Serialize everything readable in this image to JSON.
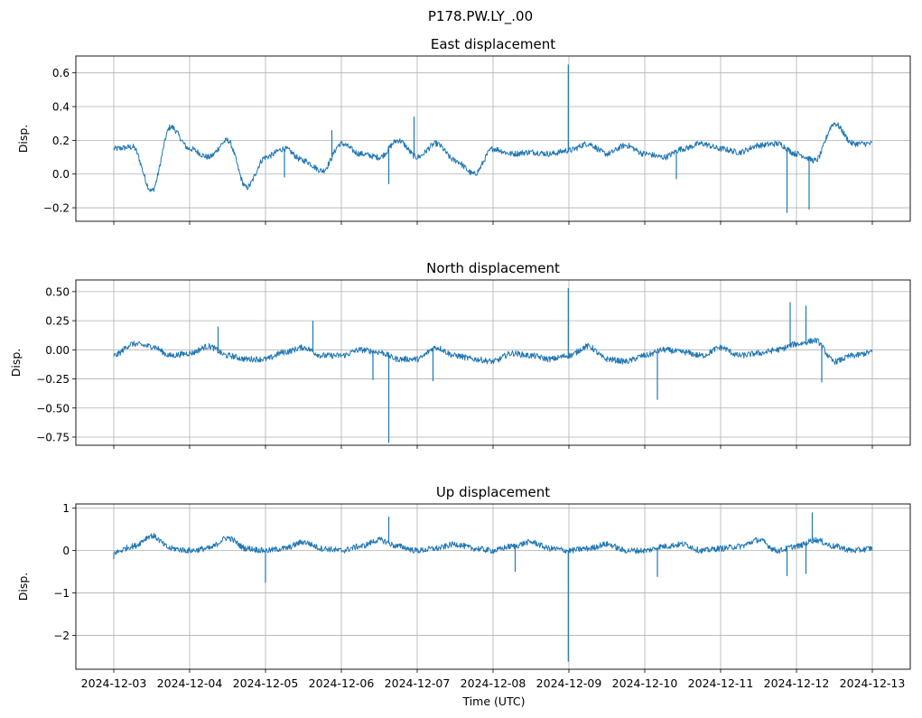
{
  "figure": {
    "suptitle": "P178.PW.LY_.00",
    "xlabel": "Time (UTC)",
    "series_color": "#1f77b4",
    "x_tick_labels": [
      "2024-12-03",
      "2024-12-04",
      "2024-12-05",
      "2024-12-06",
      "2024-12-07",
      "2024-12-08",
      "2024-12-09",
      "2024-12-10",
      "2024-12-11",
      "2024-12-12",
      "2024-12-13"
    ]
  },
  "chart_data": [
    {
      "type": "line",
      "title": "East displacement",
      "ylabel": "Disp.",
      "ylim": [
        -0.28,
        0.7
      ],
      "yticks": [
        -0.2,
        0.0,
        0.2,
        0.4,
        0.6
      ],
      "ytick_labels": [
        "−0.2",
        "0.0",
        "0.2",
        "0.4",
        "0.6"
      ],
      "grid": true,
      "xlim": [
        "2024-12-02T12:00",
        "2024-12-13T12:00"
      ],
      "x": [
        "2024-12-03T00:00",
        "2024-12-03T06:00",
        "2024-12-03T12:00",
        "2024-12-03T18:00",
        "2024-12-04T00:00",
        "2024-12-04T06:00",
        "2024-12-04T12:00",
        "2024-12-04T18:00",
        "2024-12-05T00:00",
        "2024-12-05T06:00",
        "2024-12-05T12:00",
        "2024-12-05T18:00",
        "2024-12-06T00:00",
        "2024-12-06T06:00",
        "2024-12-06T12:00",
        "2024-12-06T18:00",
        "2024-12-07T00:00",
        "2024-12-07T06:00",
        "2024-12-07T12:00",
        "2024-12-07T18:00",
        "2024-12-08T00:00",
        "2024-12-08T06:00",
        "2024-12-08T12:00",
        "2024-12-08T18:00",
        "2024-12-09T00:00",
        "2024-12-09T06:00",
        "2024-12-09T12:00",
        "2024-12-09T18:00",
        "2024-12-10T00:00",
        "2024-12-10T06:00",
        "2024-12-10T12:00",
        "2024-12-10T18:00",
        "2024-12-11T00:00",
        "2024-12-11T06:00",
        "2024-12-11T12:00",
        "2024-12-11T18:00",
        "2024-12-12T00:00",
        "2024-12-12T06:00",
        "2024-12-12T12:00",
        "2024-12-12T18:00",
        "2024-12-13T00:00"
      ],
      "values": [
        0.15,
        0.16,
        -0.1,
        0.28,
        0.15,
        0.1,
        0.2,
        -0.08,
        0.1,
        0.15,
        0.08,
        0.02,
        0.18,
        0.12,
        0.1,
        0.2,
        0.1,
        0.18,
        0.08,
        0.0,
        0.15,
        0.12,
        0.13,
        0.12,
        0.14,
        0.18,
        0.12,
        0.17,
        0.12,
        0.1,
        0.15,
        0.18,
        0.15,
        0.13,
        0.17,
        0.18,
        0.12,
        0.08,
        0.3,
        0.18,
        0.18
      ],
      "spikes": [
        {
          "x": "2024-12-08T23:48",
          "y": 0.65
        },
        {
          "x": "2024-12-05T21:00",
          "y": 0.26
        },
        {
          "x": "2024-12-06T23:00",
          "y": 0.34
        },
        {
          "x": "2024-12-05T06:00",
          "y": -0.02
        },
        {
          "x": "2024-12-06T15:00",
          "y": -0.06
        },
        {
          "x": "2024-12-10T10:00",
          "y": -0.03
        },
        {
          "x": "2024-12-11T21:00",
          "y": -0.23
        },
        {
          "x": "2024-12-12T04:00",
          "y": -0.21
        }
      ]
    },
    {
      "type": "line",
      "title": "North displacement",
      "ylabel": "Disp.",
      "ylim": [
        -0.82,
        0.6
      ],
      "yticks": [
        -0.75,
        -0.5,
        -0.25,
        0.0,
        0.25,
        0.5
      ],
      "ytick_labels": [
        "−0.75",
        "−0.50",
        "−0.25",
        "0.00",
        "0.25",
        "0.50"
      ],
      "grid": true,
      "xlim": [
        "2024-12-02T12:00",
        "2024-12-13T12:00"
      ],
      "x": [
        "2024-12-03T00:00",
        "2024-12-03T06:00",
        "2024-12-03T12:00",
        "2024-12-03T18:00",
        "2024-12-04T00:00",
        "2024-12-04T06:00",
        "2024-12-04T12:00",
        "2024-12-04T18:00",
        "2024-12-05T00:00",
        "2024-12-05T06:00",
        "2024-12-05T12:00",
        "2024-12-05T18:00",
        "2024-12-06T00:00",
        "2024-12-06T06:00",
        "2024-12-06T12:00",
        "2024-12-06T18:00",
        "2024-12-07T00:00",
        "2024-12-07T06:00",
        "2024-12-07T12:00",
        "2024-12-07T18:00",
        "2024-12-08T00:00",
        "2024-12-08T06:00",
        "2024-12-08T12:00",
        "2024-12-08T18:00",
        "2024-12-09T00:00",
        "2024-12-09T06:00",
        "2024-12-09T12:00",
        "2024-12-09T18:00",
        "2024-12-10T00:00",
        "2024-12-10T06:00",
        "2024-12-10T12:00",
        "2024-12-10T18:00",
        "2024-12-11T00:00",
        "2024-12-11T06:00",
        "2024-12-11T12:00",
        "2024-12-11T18:00",
        "2024-12-12T00:00",
        "2024-12-12T06:00",
        "2024-12-12T12:00",
        "2024-12-12T18:00",
        "2024-12-13T00:00"
      ],
      "values": [
        -0.05,
        0.05,
        0.03,
        -0.05,
        -0.03,
        0.03,
        -0.05,
        -0.08,
        -0.08,
        -0.02,
        0.02,
        -0.05,
        -0.05,
        0.0,
        -0.02,
        -0.08,
        -0.08,
        0.02,
        -0.05,
        -0.08,
        -0.1,
        -0.03,
        -0.05,
        -0.08,
        -0.05,
        0.03,
        -0.08,
        -0.1,
        -0.05,
        0.0,
        -0.02,
        -0.05,
        0.02,
        -0.05,
        -0.03,
        0.0,
        0.05,
        0.08,
        -0.1,
        -0.05,
        -0.02
      ],
      "spikes": [
        {
          "x": "2024-12-08T23:48",
          "y": 0.53
        },
        {
          "x": "2024-12-04T09:00",
          "y": 0.2
        },
        {
          "x": "2024-12-05T15:00",
          "y": 0.25
        },
        {
          "x": "2024-12-06T15:00",
          "y": -0.8
        },
        {
          "x": "2024-12-06T10:00",
          "y": -0.26
        },
        {
          "x": "2024-12-07T05:00",
          "y": -0.27
        },
        {
          "x": "2024-12-10T04:00",
          "y": -0.43
        },
        {
          "x": "2024-12-12T03:00",
          "y": 0.38
        },
        {
          "x": "2024-12-12T08:00",
          "y": -0.28
        },
        {
          "x": "2024-12-11T22:00",
          "y": 0.41
        }
      ]
    },
    {
      "type": "line",
      "title": "Up displacement",
      "ylabel": "Disp.",
      "ylim": [
        -2.8,
        1.1
      ],
      "yticks": [
        -2,
        -1,
        0,
        1
      ],
      "ytick_labels": [
        "−2",
        "−1",
        "0",
        "1"
      ],
      "grid": true,
      "xlim": [
        "2024-12-02T12:00",
        "2024-12-13T12:00"
      ],
      "x": [
        "2024-12-03T00:00",
        "2024-12-03T06:00",
        "2024-12-03T12:00",
        "2024-12-03T18:00",
        "2024-12-04T00:00",
        "2024-12-04T06:00",
        "2024-12-04T12:00",
        "2024-12-04T18:00",
        "2024-12-05T00:00",
        "2024-12-05T06:00",
        "2024-12-05T12:00",
        "2024-12-05T18:00",
        "2024-12-06T00:00",
        "2024-12-06T06:00",
        "2024-12-06T12:00",
        "2024-12-06T18:00",
        "2024-12-07T00:00",
        "2024-12-07T06:00",
        "2024-12-07T12:00",
        "2024-12-07T18:00",
        "2024-12-08T00:00",
        "2024-12-08T06:00",
        "2024-12-08T12:00",
        "2024-12-08T18:00",
        "2024-12-09T00:00",
        "2024-12-09T06:00",
        "2024-12-09T12:00",
        "2024-12-09T18:00",
        "2024-12-10T00:00",
        "2024-12-10T06:00",
        "2024-12-10T12:00",
        "2024-12-10T18:00",
        "2024-12-11T00:00",
        "2024-12-11T06:00",
        "2024-12-11T12:00",
        "2024-12-11T18:00",
        "2024-12-12T00:00",
        "2024-12-12T06:00",
        "2024-12-12T12:00",
        "2024-12-12T18:00",
        "2024-12-13T00:00"
      ],
      "values": [
        -0.05,
        0.1,
        0.35,
        0.05,
        0.0,
        0.05,
        0.3,
        0.05,
        0.0,
        0.05,
        0.2,
        0.05,
        0.0,
        0.1,
        0.25,
        0.1,
        0.0,
        0.05,
        0.15,
        0.05,
        0.0,
        0.1,
        0.2,
        0.05,
        0.0,
        0.05,
        0.15,
        0.0,
        0.0,
        0.1,
        0.15,
        0.0,
        0.05,
        0.1,
        0.25,
        0.0,
        0.1,
        0.25,
        0.1,
        0.0,
        0.05
      ],
      "spikes": [
        {
          "x": "2024-12-08T23:48",
          "y": -2.62
        },
        {
          "x": "2024-12-05T00:00",
          "y": -0.76
        },
        {
          "x": "2024-12-06T15:00",
          "y": 0.8
        },
        {
          "x": "2024-12-08T07:00",
          "y": -0.5
        },
        {
          "x": "2024-12-10T04:00",
          "y": -0.62
        },
        {
          "x": "2024-12-11T21:00",
          "y": -0.6
        },
        {
          "x": "2024-12-12T05:00",
          "y": 0.9
        },
        {
          "x": "2024-12-12T03:00",
          "y": -0.55
        },
        {
          "x": "2024-12-03T00:00",
          "y": -0.2
        }
      ]
    }
  ]
}
